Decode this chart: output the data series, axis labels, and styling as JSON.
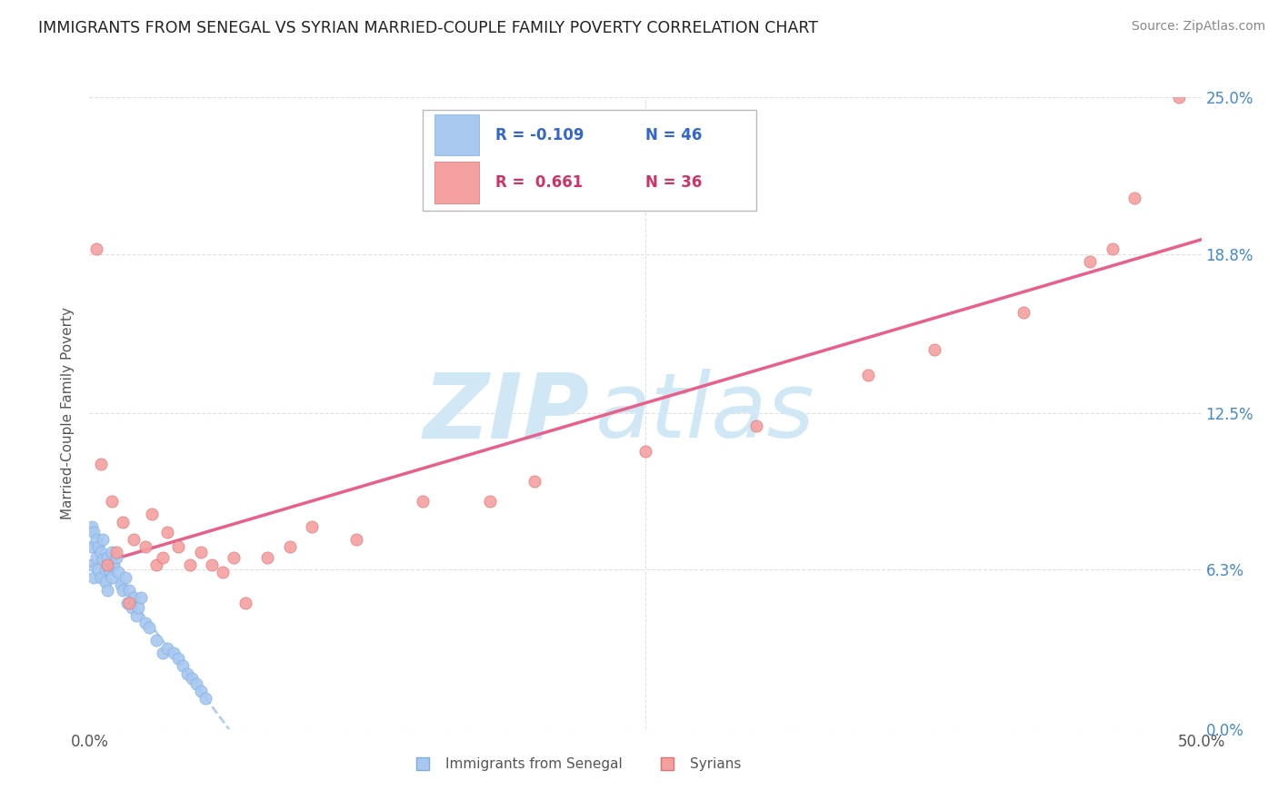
{
  "title": "IMMIGRANTS FROM SENEGAL VS SYRIAN MARRIED-COUPLE FAMILY POVERTY CORRELATION CHART",
  "source": "Source: ZipAtlas.com",
  "ylabel": "Married-Couple Family Poverty",
  "xlim": [
    0.0,
    0.5
  ],
  "ylim": [
    0.0,
    0.25
  ],
  "ytick_labels": [
    "0.0%",
    "6.3%",
    "12.5%",
    "18.8%",
    "25.0%"
  ],
  "ytick_values": [
    0.0,
    0.063,
    0.125,
    0.188,
    0.25
  ],
  "xtick_labels": [
    "0.0%",
    "50.0%"
  ],
  "xtick_values": [
    0.0,
    0.5
  ],
  "legend_r1": "R = -0.109",
  "legend_n1": "N = 46",
  "legend_r2": "R =  0.661",
  "legend_n2": "N = 36",
  "color_senegal": "#a8c8f0",
  "color_senegal_edge": "#7aaee0",
  "color_syrian": "#f5a0a0",
  "color_syrian_edge": "#e07070",
  "color_senegal_line": "#aaccee",
  "color_syrian_line": "#e8608a",
  "watermark_zip": "ZIP",
  "watermark_atlas": "atlas",
  "watermark_color": "#d0e8f5",
  "grid_color": "#e0e0e0",
  "legend_color_blue": "#3366cc",
  "legend_color_pink": "#cc3366",
  "senegal_x": [
    0.001,
    0.001,
    0.001,
    0.002,
    0.002,
    0.003,
    0.003,
    0.004,
    0.004,
    0.005,
    0.005,
    0.006,
    0.006,
    0.007,
    0.007,
    0.008,
    0.008,
    0.009,
    0.01,
    0.01,
    0.011,
    0.012,
    0.013,
    0.014,
    0.015,
    0.016,
    0.017,
    0.018,
    0.019,
    0.02,
    0.021,
    0.022,
    0.023,
    0.025,
    0.027,
    0.03,
    0.033,
    0.035,
    0.038,
    0.04,
    0.042,
    0.044,
    0.046,
    0.048,
    0.05,
    0.052
  ],
  "senegal_y": [
    0.08,
    0.072,
    0.065,
    0.078,
    0.06,
    0.075,
    0.068,
    0.072,
    0.063,
    0.07,
    0.06,
    0.075,
    0.067,
    0.063,
    0.058,
    0.068,
    0.055,
    0.063,
    0.07,
    0.06,
    0.065,
    0.068,
    0.062,
    0.057,
    0.055,
    0.06,
    0.05,
    0.055,
    0.048,
    0.052,
    0.045,
    0.048,
    0.052,
    0.042,
    0.04,
    0.035,
    0.03,
    0.032,
    0.03,
    0.028,
    0.025,
    0.022,
    0.02,
    0.018,
    0.015,
    0.012
  ],
  "syrian_x": [
    0.003,
    0.005,
    0.008,
    0.01,
    0.012,
    0.015,
    0.018,
    0.02,
    0.025,
    0.028,
    0.03,
    0.033,
    0.035,
    0.04,
    0.045,
    0.05,
    0.055,
    0.06,
    0.065,
    0.07,
    0.08,
    0.09,
    0.1,
    0.12,
    0.15,
    0.18,
    0.2,
    0.25,
    0.3,
    0.35,
    0.38,
    0.42,
    0.45,
    0.46,
    0.47,
    0.49
  ],
  "syrian_y": [
    0.19,
    0.105,
    0.065,
    0.09,
    0.07,
    0.082,
    0.05,
    0.075,
    0.072,
    0.085,
    0.065,
    0.068,
    0.078,
    0.072,
    0.065,
    0.07,
    0.065,
    0.062,
    0.068,
    0.05,
    0.068,
    0.072,
    0.08,
    0.075,
    0.09,
    0.09,
    0.098,
    0.11,
    0.12,
    0.14,
    0.15,
    0.165,
    0.185,
    0.19,
    0.21,
    0.25
  ]
}
